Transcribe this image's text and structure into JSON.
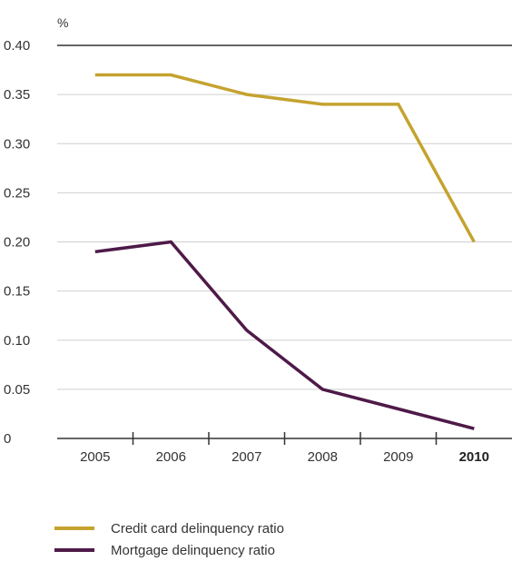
{
  "chart_data": {
    "type": "line",
    "unit_label": "%",
    "categories": [
      "2005",
      "2006",
      "2007",
      "2008",
      "2009",
      "2010"
    ],
    "highlight_category": "2010",
    "y_ticks": [
      "0.40",
      "0.35",
      "0.30",
      "0.25",
      "0.20",
      "0.15",
      "0.10",
      "0.05",
      "0"
    ],
    "ylim": [
      0,
      0.4
    ],
    "grid": true,
    "legend_position": "bottom-left",
    "series": [
      {
        "name": "Credit card delinquency ratio",
        "color": "#c4a32f",
        "values": [
          0.37,
          0.37,
          0.35,
          0.34,
          0.34,
          0.2
        ]
      },
      {
        "name": "Mortgage delinquency ratio",
        "color": "#4e1a48",
        "values": [
          0.19,
          0.2,
          0.11,
          0.05,
          0.03,
          0.01
        ]
      }
    ]
  }
}
